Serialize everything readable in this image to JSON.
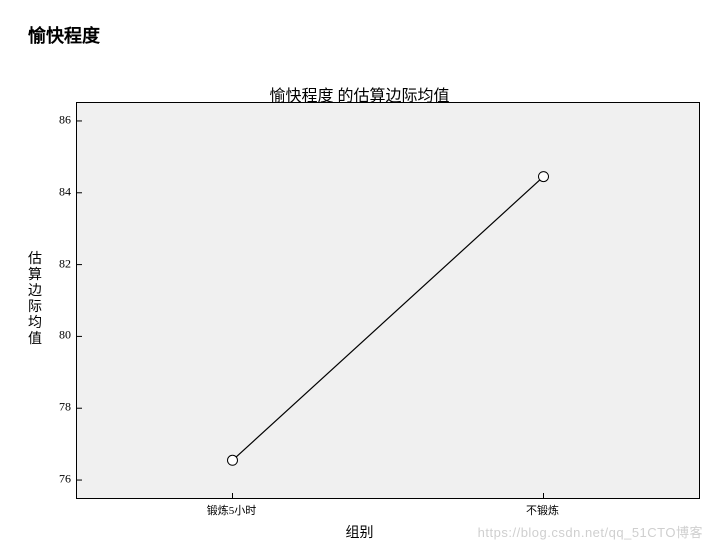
{
  "page_title": "愉快程度",
  "chart": {
    "type": "line",
    "title": "愉快程度 的估算边际均值",
    "title_fontsize": 16,
    "xlabel": "组别",
    "ylabel": "估算边际均值",
    "label_fontsize": 14,
    "tick_fontsize": 12,
    "background_color": "#f0f0f0",
    "border_color": "#000000",
    "line_color": "#000000",
    "line_width": 1.2,
    "marker_style": "circle",
    "marker_size": 5,
    "marker_fill": "#ffffff",
    "marker_stroke": "#000000",
    "ylim": [
      75.5,
      86.5
    ],
    "ytick_step": 2,
    "yticks": [
      "76",
      "78",
      "80",
      "82",
      "84",
      "86"
    ],
    "categories": [
      "锻炼5小时",
      "不锻炼"
    ],
    "values": [
      76.55,
      84.45
    ]
  },
  "watermark": "https://blog.csdn.net/qq_51CTO博客"
}
